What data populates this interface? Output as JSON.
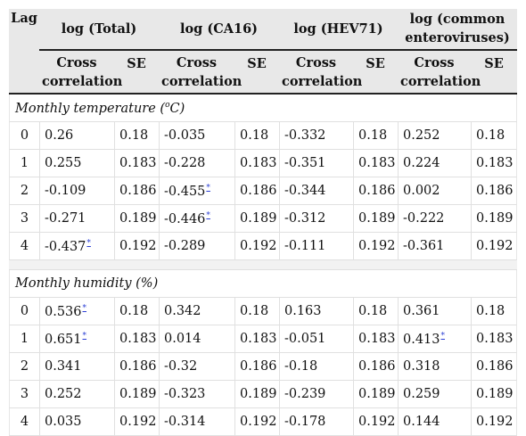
{
  "headers": {
    "lag": "Lag",
    "groups": [
      "log (Total)",
      "log (CA16)",
      "log (HEV71)",
      "log (common enteroviruses)"
    ],
    "cross_correlation": "Cross correlation",
    "se": "SE"
  },
  "sections": [
    {
      "title": "Monthly temperature (",
      "unit_sup": "o",
      "unit_tail": "C)",
      "rows": [
        {
          "lag": "0",
          "c1": "0.26",
          "s1": "0.18",
          "c2": "-0.035",
          "s2": "0.18",
          "c3": "-0.332",
          "s3": "0.18",
          "c4": "0.252",
          "s4": "0.18"
        },
        {
          "lag": "1",
          "c1": "0.255",
          "s1": "0.183",
          "c2": "-0.228",
          "s2": "0.183",
          "c3": "-0.351",
          "s3": "0.183",
          "c4": "0.224",
          "s4": "0.183"
        },
        {
          "lag": "2",
          "c1": "-0.109",
          "s1": "0.186",
          "c2": "-0.455",
          "s2": "0.186",
          "c3": "-0.344",
          "s3": "0.186",
          "c4": "0.002",
          "s4": "0.186"
        },
        {
          "lag": "3",
          "c1": "-0.271",
          "s1": "0.189",
          "c2": "-0.446",
          "s2": "0.189",
          "c3": "-0.312",
          "s3": "0.189",
          "c4": "-0.222",
          "s4": "0.189"
        },
        {
          "lag": "4",
          "c1": "-0.437",
          "s1": "0.192",
          "c2": "-0.289",
          "s2": "0.192",
          "c3": "-0.111",
          "s3": "0.192",
          "c4": "-0.361",
          "s4": "0.192"
        }
      ]
    },
    {
      "title": "Monthly humidity (%)",
      "rows": [
        {
          "lag": "0",
          "c1": "0.536",
          "s1": "0.18",
          "c2": "0.342",
          "s2": "0.18",
          "c3": "0.163",
          "s3": "0.18",
          "c4": "0.361",
          "s4": "0.18"
        },
        {
          "lag": "1",
          "c1": "0.651",
          "s1": "0.183",
          "c2": "0.014",
          "s2": "0.183",
          "c3": "-0.051",
          "s3": "0.183",
          "c4": "0.413",
          "s4": "0.183"
        },
        {
          "lag": "2",
          "c1": "0.341",
          "s1": "0.186",
          "c2": "-0.32",
          "s2": "0.186",
          "c3": "-0.18",
          "s3": "0.186",
          "c4": "0.318",
          "s4": "0.186"
        },
        {
          "lag": "3",
          "c1": "0.252",
          "s1": "0.189",
          "c2": "-0.323",
          "s2": "0.189",
          "c3": "-0.239",
          "s3": "0.189",
          "c4": "0.259",
          "s4": "0.189"
        },
        {
          "lag": "4",
          "c1": "0.035",
          "s1": "0.192",
          "c2": "-0.314",
          "s2": "0.192",
          "c3": "-0.178",
          "s3": "0.192",
          "c4": "0.144",
          "s4": "0.192"
        }
      ]
    }
  ],
  "footnote_marker": "*"
}
